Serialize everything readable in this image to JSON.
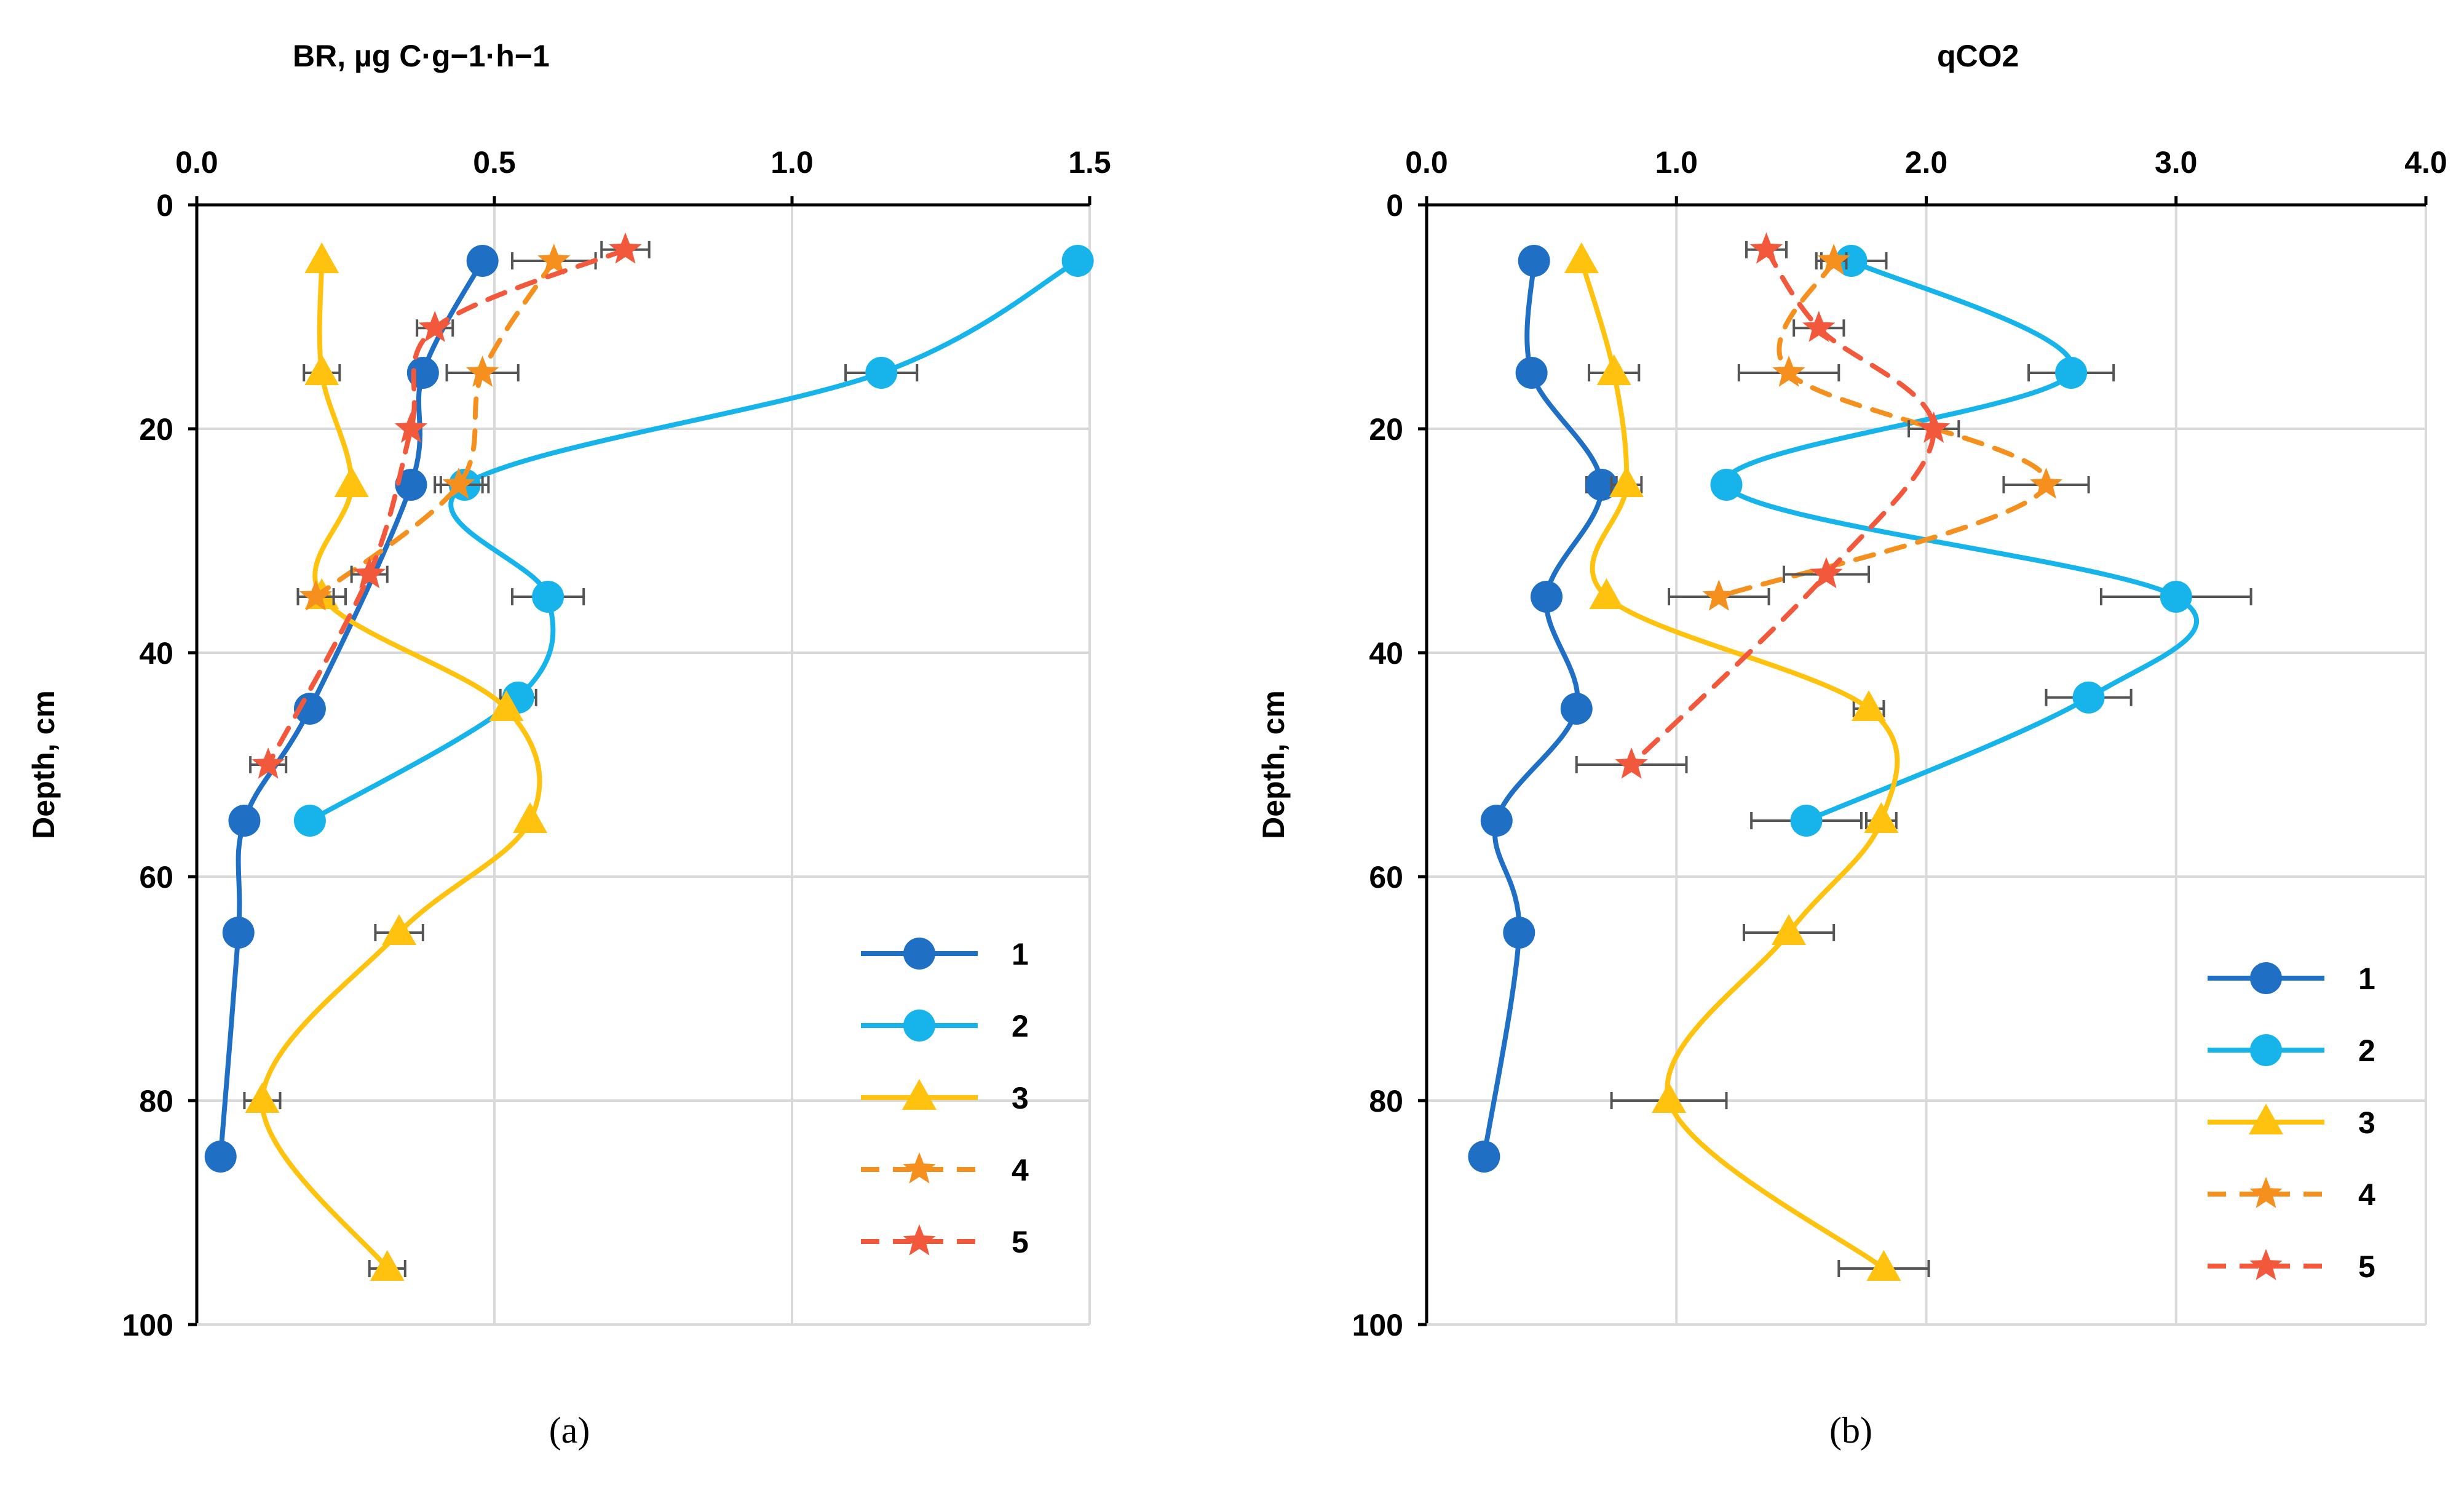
{
  "chart_data": [
    {
      "type": "line",
      "title": "BR, µg C·g−1·h−1",
      "xlabel": "BR, µg C·g−1·h−1",
      "ylabel": "Depth, cm",
      "panel_label": "(a)",
      "xlim": [
        0,
        1.5
      ],
      "ylim": [
        0,
        100
      ],
      "x_ticks": [
        "0.0",
        "0.5",
        "1.0",
        "1.5"
      ],
      "y_ticks": [
        "0",
        "20",
        "40",
        "60",
        "80",
        "100"
      ],
      "grid": true,
      "x_axis_position": "top",
      "y_axis_inverted": true,
      "legend_position": "bottom-right",
      "series": [
        {
          "name": "1",
          "color": "#1F6FC5",
          "marker": "circle",
          "dash": "solid",
          "x": [
            0.48,
            0.38,
            0.36,
            0.19,
            0.08,
            0.07,
            0.04
          ],
          "y": [
            5,
            15,
            25,
            45,
            55,
            65,
            85
          ],
          "err": [
            0,
            0,
            0,
            0,
            0,
            0,
            0
          ]
        },
        {
          "name": "2",
          "color": "#16B4EA",
          "marker": "circle",
          "dash": "solid",
          "x": [
            1.48,
            1.15,
            0.45,
            0.59,
            0.54,
            0.19
          ],
          "y": [
            5,
            15,
            25,
            35,
            44,
            55
          ],
          "err": [
            0,
            0.06,
            0.04,
            0.06,
            0.03,
            0
          ]
        },
        {
          "name": "3",
          "color": "#FFC20E",
          "marker": "triangle",
          "dash": "solid",
          "x": [
            0.21,
            0.21,
            0.26,
            0.21,
            0.52,
            0.56,
            0.34,
            0.11,
            0.32
          ],
          "y": [
            5,
            15,
            25,
            35,
            45,
            55,
            65,
            80,
            95
          ],
          "err": [
            0,
            0.03,
            0,
            0.04,
            0,
            0,
            0.04,
            0.03,
            0.03
          ]
        },
        {
          "name": "4",
          "color": "#F5901E",
          "marker": "star",
          "dash": "dashed",
          "x": [
            0.6,
            0.48,
            0.44,
            0.2
          ],
          "y": [
            5,
            15,
            25,
            35
          ],
          "err": [
            0.07,
            0.06,
            0.04,
            0.03
          ]
        },
        {
          "name": "5",
          "color": "#F2593C",
          "marker": "star",
          "dash": "dashed",
          "x": [
            0.72,
            0.4,
            0.36,
            0.29,
            0.12
          ],
          "y": [
            4,
            11,
            20,
            33,
            50
          ],
          "err": [
            0.04,
            0.03,
            0,
            0.03,
            0.03
          ]
        }
      ]
    },
    {
      "type": "line",
      "title": "qCO2",
      "xlabel": "qCO2",
      "ylabel": "Depth, cm",
      "panel_label": "(b)",
      "xlim": [
        0,
        4
      ],
      "ylim": [
        0,
        100
      ],
      "x_ticks": [
        "0.0",
        "1.0",
        "2.0",
        "3.0",
        "4.0"
      ],
      "y_ticks": [
        "0",
        "20",
        "40",
        "60",
        "80",
        "100"
      ],
      "grid": true,
      "x_axis_position": "top",
      "y_axis_inverted": true,
      "legend_position": "bottom-right",
      "series": [
        {
          "name": "1",
          "color": "#1F6FC5",
          "marker": "circle",
          "dash": "solid",
          "x": [
            0.43,
            0.42,
            0.7,
            0.48,
            0.6,
            0.28,
            0.37,
            0.23
          ],
          "y": [
            5,
            15,
            25,
            35,
            45,
            55,
            65,
            85
          ],
          "err": [
            0,
            0,
            0.06,
            0,
            0,
            0,
            0,
            0
          ]
        },
        {
          "name": "2",
          "color": "#16B4EA",
          "marker": "circle",
          "dash": "solid",
          "x": [
            1.7,
            2.58,
            1.2,
            3.0,
            2.65,
            1.52
          ],
          "y": [
            5,
            15,
            25,
            35,
            44,
            55
          ],
          "err": [
            0.14,
            0.17,
            0,
            0.3,
            0.17,
            0.22
          ]
        },
        {
          "name": "3",
          "color": "#FFC20E",
          "marker": "triangle",
          "dash": "solid",
          "x": [
            0.62,
            0.75,
            0.8,
            0.72,
            1.77,
            1.82,
            1.45,
            0.97,
            1.83
          ],
          "y": [
            5,
            15,
            25,
            35,
            45,
            55,
            65,
            80,
            95
          ],
          "err": [
            0,
            0.1,
            0.06,
            0,
            0.06,
            0.06,
            0.18,
            0.23,
            0.18
          ]
        },
        {
          "name": "4",
          "color": "#F5901E",
          "marker": "star",
          "dash": "dashed",
          "x": [
            1.63,
            1.45,
            2.48,
            1.17
          ],
          "y": [
            5,
            15,
            25,
            35
          ],
          "err": [
            0.05,
            0.2,
            0.17,
            0.2
          ]
        },
        {
          "name": "5",
          "color": "#F2593C",
          "marker": "star",
          "dash": "dashed",
          "x": [
            1.36,
            1.57,
            2.03,
            1.6,
            0.82
          ],
          "y": [
            4,
            11,
            20,
            33,
            50
          ],
          "err": [
            0.08,
            0.1,
            0.1,
            0.17,
            0.22
          ]
        }
      ]
    }
  ]
}
